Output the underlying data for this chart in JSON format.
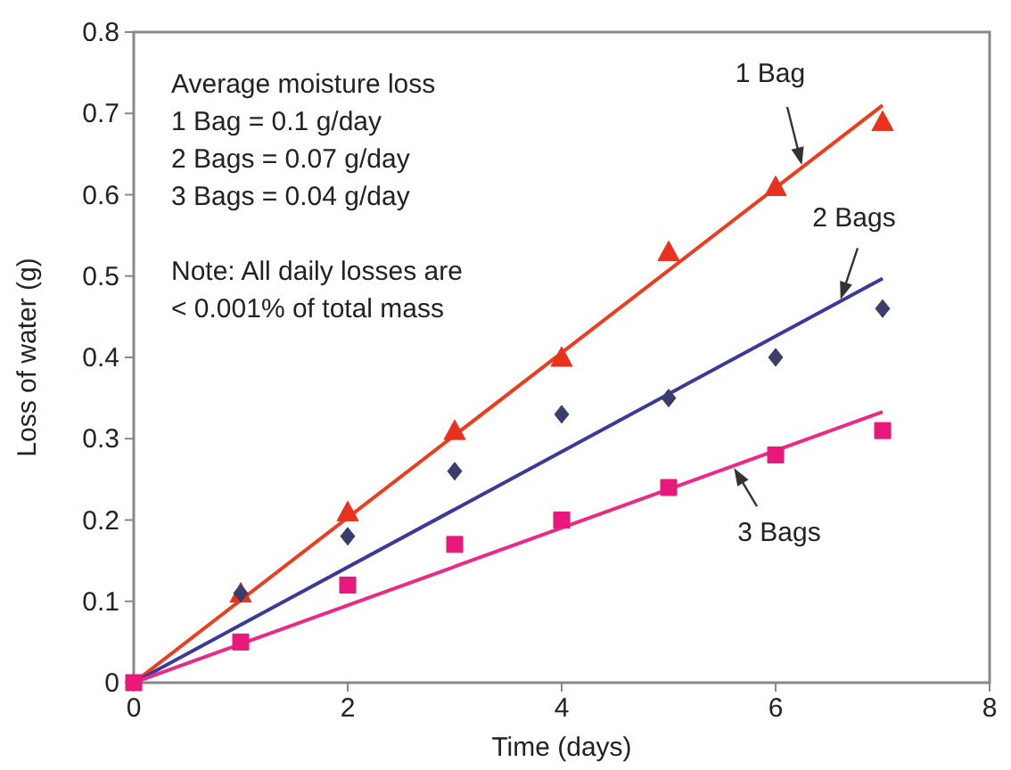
{
  "chart_data": {
    "type": "scatter",
    "xlabel": "Time (days)",
    "ylabel": "Loss of water (g)",
    "xlim": [
      0,
      8
    ],
    "xticks": [
      0,
      2,
      4,
      6,
      8
    ],
    "ylim": [
      0,
      0.8
    ],
    "yticks": [
      0,
      0.1,
      0.2,
      0.3,
      0.4,
      0.5,
      0.6,
      0.7,
      0.8
    ],
    "grid": false,
    "annotations": [
      "Average moisture loss",
      "1 Bag = 0.1 g/day",
      "2 Bags = 0.07 g/day",
      "3 Bags = 0.04 g/day",
      "Note: All daily losses are",
      "< 0.001% of total mass"
    ],
    "series": [
      {
        "marker": "triangle",
        "color": "#e8321e",
        "x": [
          1,
          2,
          3,
          4,
          5,
          6,
          7
        ],
        "values": [
          0.11,
          0.21,
          0.31,
          0.4,
          0.53,
          0.61,
          0.69
        ]
      },
      {
        "marker": "diamond",
        "color": "#3d3d6b",
        "x": [
          1,
          2,
          3,
          4,
          5,
          6,
          7
        ],
        "values": [
          0.11,
          0.18,
          0.26,
          0.33,
          0.35,
          0.4,
          0.46
        ]
      },
      {
        "marker": "square",
        "color": "#e8197a",
        "x": [
          0,
          1,
          2,
          3,
          4,
          5,
          6,
          7
        ],
        "values": [
          0,
          0.05,
          0.12,
          0.17,
          0.2,
          0.24,
          0.28,
          0.31
        ]
      },
      {
        "type": "line",
        "name": "1 Bag",
        "color": "#f03c1e",
        "x": [
          0,
          7
        ],
        "values": [
          0,
          0.71
        ]
      },
      {
        "type": "line",
        "name": "2 Bags",
        "color": "#3a3a9e",
        "x": [
          0,
          7
        ],
        "values": [
          0,
          0.497
        ]
      },
      {
        "type": "line",
        "name": "3 Bags",
        "color": "#ec2a86",
        "x": [
          0,
          7
        ],
        "values": [
          0,
          0.333
        ]
      }
    ]
  }
}
